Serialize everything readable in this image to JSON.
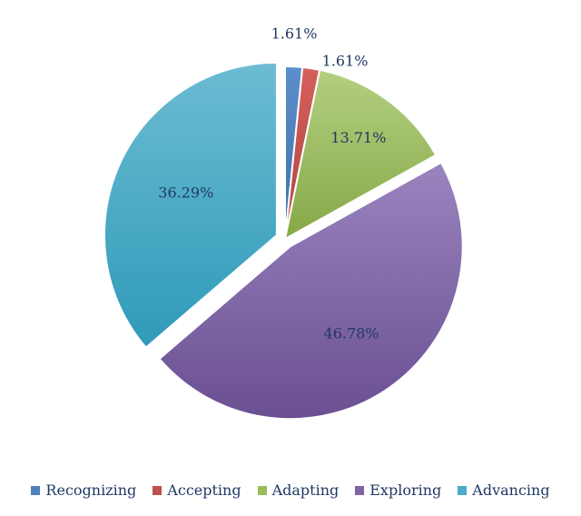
{
  "chart_data": {
    "type": "pie",
    "categories": [
      "Recognizing",
      "Accepting",
      "Adapting",
      "Exploring",
      "Advancing"
    ],
    "values": [
      1.61,
      1.61,
      13.71,
      46.78,
      36.29
    ],
    "labels": [
      "1.61%",
      "1.61%",
      "13.71%",
      "46.78%",
      "36.29%"
    ],
    "colors": [
      "#4f81bd",
      "#c0504d",
      "#9bbb59",
      "#8064a2",
      "#4bacc6"
    ],
    "legend_placement": "bottom",
    "title": ""
  }
}
